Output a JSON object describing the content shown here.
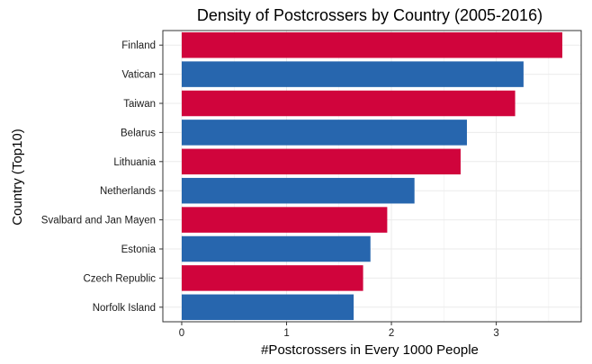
{
  "chart_data": {
    "type": "bar",
    "orientation": "horizontal",
    "title": "Density of Postcrossers by Country (2005-2016)",
    "xlabel": "#Postcrossers in Every 1000 People",
    "ylabel": "Country (Top10)",
    "categories": [
      "Finland",
      "Vatican",
      "Taiwan",
      "Belarus",
      "Lithuania",
      "Netherlands",
      "Svalbard and Jan Mayen",
      "Estonia",
      "Czech Republic",
      "Norfolk Island"
    ],
    "values": [
      3.63,
      3.26,
      3.18,
      2.72,
      2.66,
      2.22,
      1.96,
      1.8,
      1.73,
      1.64
    ],
    "bar_colors": [
      "#d0043c",
      "#2766ae",
      "#d0043c",
      "#2766ae",
      "#d0043c",
      "#2766ae",
      "#d0043c",
      "#2766ae",
      "#d0043c",
      "#2766ae"
    ],
    "xlim": [
      -0.18,
      3.81
    ],
    "xticks": [
      0,
      1,
      2,
      3
    ],
    "xtick_labels": [
      "0",
      "1",
      "2",
      "3"
    ],
    "grid": true,
    "panel_border": "#333333",
    "grid_color": "#ebebeb"
  }
}
